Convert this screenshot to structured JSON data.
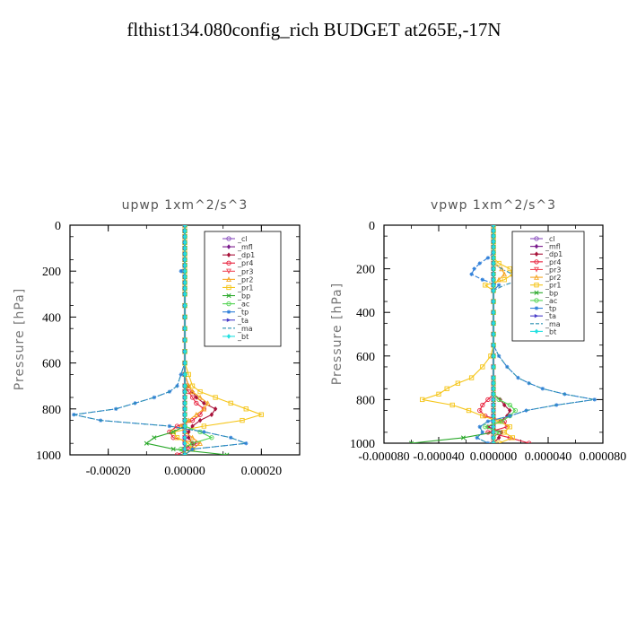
{
  "title": "flthist134.080config_rich  BUDGET at265E,-17N",
  "series_style": {
    "_cl": {
      "color": "#8a4fbf",
      "marker": "o"
    },
    "_mfl": {
      "color": "#7a1a8c",
      "marker": "d"
    },
    "_dp1": {
      "color": "#a8123a",
      "marker": "d"
    },
    "_pr4": {
      "color": "#e8203c",
      "marker": "o"
    },
    "_pr3": {
      "color": "#f04a5a",
      "marker": "v"
    },
    "_pr2": {
      "color": "#f5a623",
      "marker": "^"
    },
    "_pr1": {
      "color": "#f5c518",
      "marker": "s"
    },
    "_bp": {
      "color": "#2aa82a",
      "marker": "x"
    },
    "_ac": {
      "color": "#52d452",
      "marker": "o"
    },
    "_tp": {
      "color": "#2f7fd9",
      "marker": "*"
    },
    "_ta": {
      "color": "#4a3fc9",
      "marker": ">"
    },
    "_ma": {
      "color": "#2a8fb0",
      "marker": "-"
    },
    "_bt": {
      "color": "#22e0e0",
      "marker": "D"
    }
  },
  "chart_data": [
    {
      "type": "line",
      "title": "upwp   1xm^2/s^3",
      "ylabel": "Pressure [hPa]",
      "xlabel": "",
      "xlim": [
        -0.0003,
        0.0003
      ],
      "ylim": [
        1000,
        0
      ],
      "x_ticks": [
        -0.0002,
        0.0,
        0.0002
      ],
      "x_tick_labels": [
        "-0.00020",
        "0.00000",
        "0.00020"
      ],
      "y_ticks": [
        0,
        200,
        400,
        600,
        800,
        1000
      ],
      "y_tick_labels": [
        "0",
        "200",
        "400",
        "600",
        "800",
        "1000"
      ],
      "legend_position": "top-right",
      "legend": [
        "_cl",
        "_mfl",
        "_dp1",
        "_pr4",
        "_pr3",
        "_pr2",
        "_pr1",
        "_bp",
        "_ac",
        "_tp",
        "_ta",
        "_ma",
        "_bt"
      ],
      "pressure": [
        0,
        25,
        50,
        75,
        100,
        125,
        150,
        175,
        200,
        225,
        250,
        275,
        300,
        350,
        400,
        450,
        500,
        550,
        600,
        650,
        700,
        725,
        750,
        775,
        800,
        825,
        850,
        875,
        900,
        925,
        950,
        975,
        1000
      ],
      "series": [
        {
          "name": "_cl",
          "values": [
            0,
            0,
            0,
            0,
            0,
            0,
            0,
            0,
            0,
            0,
            0,
            0,
            0,
            0,
            0,
            0,
            0,
            0,
            0,
            0,
            0,
            0,
            0,
            0,
            0,
            0,
            0,
            0,
            0,
            0,
            0,
            0,
            0
          ]
        },
        {
          "name": "_mfl",
          "values": [
            0,
            0,
            0,
            0,
            0,
            0,
            0,
            0,
            0,
            0,
            0,
            0,
            0,
            0,
            0,
            0,
            0,
            0,
            0,
            0,
            0,
            0,
            0,
            0,
            0,
            0,
            0,
            0,
            0,
            0,
            0,
            0,
            0
          ]
        },
        {
          "name": "_dp1",
          "values": [
            0,
            0,
            0,
            0,
            0,
            0,
            0,
            0,
            0,
            0,
            0,
            0,
            0,
            0,
            0,
            0,
            0,
            0,
            0,
            0,
            1e-05,
            2e-05,
            3e-05,
            5e-05,
            8e-05,
            7e-05,
            4e-05,
            2e-05,
            1e-05,
            1e-05,
            2e-05,
            0,
            0
          ]
        },
        {
          "name": "_pr4",
          "values": [
            0,
            0,
            0,
            0,
            0,
            0,
            0,
            0,
            0,
            0,
            0,
            0,
            0,
            0,
            0,
            0,
            0,
            0,
            0,
            0,
            0,
            1e-05,
            2e-05,
            3e-05,
            5e-05,
            4e-05,
            2e-05,
            -2e-05,
            -4e-05,
            -3e-05,
            3e-05,
            1e-05,
            -2e-05
          ]
        },
        {
          "name": "_pr3",
          "values": [
            0,
            0,
            0,
            0,
            0,
            0,
            0,
            0,
            0,
            0,
            0,
            0,
            0,
            0,
            0,
            0,
            0,
            0,
            0,
            0,
            0,
            0,
            0,
            0,
            0,
            0,
            0,
            0,
            0,
            0,
            0,
            0,
            0
          ]
        },
        {
          "name": "_pr2",
          "values": [
            0,
            0,
            0,
            0,
            0,
            0,
            0,
            0,
            0,
            0,
            0,
            0,
            0,
            0,
            0,
            0,
            0,
            0,
            0,
            0,
            1e-05,
            2e-05,
            4e-05,
            6e-05,
            5e-05,
            3e-05,
            1e-05,
            -1e-05,
            0,
            2e-05,
            4e-05,
            2e-05,
            0
          ]
        },
        {
          "name": "_pr1",
          "values": [
            0,
            0,
            0,
            0,
            0,
            0,
            0,
            0,
            0,
            0,
            0,
            0,
            0,
            0,
            0,
            0,
            0,
            0,
            0,
            1e-05,
            2e-05,
            4e-05,
            8e-05,
            0.00012,
            0.00016,
            0.0002,
            0.00015,
            5e-05,
            -3e-05,
            -2e-05,
            1e-05,
            2e-05,
            0
          ]
        },
        {
          "name": "_bp",
          "values": [
            0,
            0,
            0,
            0,
            0,
            0,
            0,
            0,
            0,
            0,
            0,
            0,
            0,
            0,
            0,
            0,
            0,
            0,
            0,
            0,
            0,
            0,
            0,
            0,
            0,
            0,
            0,
            0,
            -3e-05,
            -8e-05,
            -0.0001,
            -3e-05,
            0.00011
          ]
        },
        {
          "name": "_ac",
          "values": [
            0,
            0,
            0,
            0,
            0,
            0,
            0,
            0,
            0,
            0,
            0,
            0,
            0,
            0,
            0,
            0,
            0,
            0,
            0,
            0,
            0,
            0,
            0,
            0,
            0,
            0,
            0,
            0,
            4e-05,
            7e-05,
            2e-05,
            -1e-05,
            0
          ]
        },
        {
          "name": "_tp",
          "values": [
            0,
            0,
            0,
            0,
            0,
            0,
            0,
            0,
            -1e-05,
            0,
            0,
            0,
            0,
            0,
            0,
            0,
            0,
            0,
            0,
            -1e-05,
            -2e-05,
            -4e-05,
            -8e-05,
            -0.00013,
            -0.00018,
            -0.00029,
            -0.00022,
            -4e-05,
            5e-05,
            0.00012,
            0.00016,
            2e-05,
            0
          ]
        },
        {
          "name": "_ta",
          "values": [
            0,
            0,
            0,
            0,
            0,
            0,
            0,
            0,
            0,
            0,
            0,
            0,
            0,
            0,
            0,
            0,
            0,
            0,
            0,
            0,
            0,
            0,
            0,
            0,
            0,
            0,
            0,
            0,
            0,
            0,
            0,
            0,
            0
          ]
        },
        {
          "name": "_ma",
          "values": [
            0,
            0,
            0,
            0,
            0,
            0,
            0,
            0,
            0,
            0,
            0,
            0,
            0,
            0,
            0,
            0,
            0,
            0,
            0,
            -1e-05,
            -2e-05,
            -4e-05,
            -8e-05,
            -0.00013,
            -0.00018,
            -0.00029,
            -0.00022,
            -4e-05,
            5e-05,
            0.00012,
            0.00016,
            2e-05,
            0
          ]
        },
        {
          "name": "_bt",
          "values": [
            0,
            0,
            0,
            0,
            0,
            0,
            0,
            0,
            0,
            0,
            0,
            0,
            0,
            0,
            0,
            0,
            0,
            0,
            0,
            0,
            0,
            0,
            0,
            0,
            0,
            0,
            0,
            0,
            0,
            0,
            0,
            0,
            0
          ]
        }
      ]
    },
    {
      "type": "line",
      "title": "vpwp   1xm^2/s^3",
      "ylabel": "Pressure [hPa]",
      "xlabel": "",
      "xlim": [
        -8e-05,
        8e-05
      ],
      "ylim": [
        1000,
        0
      ],
      "x_ticks": [
        -8e-05,
        -4e-05,
        0.0,
        4e-05,
        8e-05
      ],
      "x_tick_labels": [
        "-0.000080",
        "-0.000040",
        "0.000000",
        "0.000040",
        "0.000080"
      ],
      "y_ticks": [
        0,
        200,
        400,
        600,
        800,
        1000
      ],
      "y_tick_labels": [
        "0",
        "200",
        "400",
        "600",
        "800",
        "1000"
      ],
      "legend_position": "top-right",
      "legend": [
        "_cl",
        "_mfl",
        "_dp1",
        "_pr4",
        "_pr3",
        "_pr2",
        "_pr1",
        "_bp",
        "_ac",
        "_tp",
        "_ta",
        "_ma",
        "_bt"
      ],
      "pressure": [
        0,
        25,
        50,
        75,
        100,
        125,
        150,
        175,
        200,
        225,
        250,
        275,
        300,
        350,
        400,
        450,
        500,
        550,
        600,
        650,
        700,
        725,
        750,
        775,
        800,
        825,
        850,
        875,
        900,
        925,
        950,
        975,
        1000
      ],
      "series": [
        {
          "name": "_cl",
          "values": [
            0,
            0,
            0,
            0,
            0,
            0,
            0,
            0,
            0,
            0,
            0,
            0,
            0,
            0,
            0,
            0,
            0,
            0,
            0,
            0,
            0,
            0,
            0,
            0,
            0,
            0,
            0,
            0,
            0,
            0,
            0,
            0,
            0
          ]
        },
        {
          "name": "_mfl",
          "values": [
            0,
            0,
            0,
            0,
            0,
            0,
            0,
            0,
            0,
            0,
            0,
            0,
            0,
            0,
            0,
            0,
            0,
            0,
            0,
            0,
            0,
            0,
            0,
            0,
            0,
            0,
            0,
            0,
            0,
            0,
            0,
            0,
            0
          ]
        },
        {
          "name": "_dp1",
          "values": [
            0,
            0,
            0,
            0,
            0,
            0,
            0,
            0,
            0,
            0,
            0,
            0,
            0,
            0,
            0,
            0,
            0,
            0,
            0,
            0,
            0,
            0,
            0,
            0,
            5e-06,
            8e-06,
            1.2e-05,
            1e-05,
            5e-06,
            -4e-06,
            6e-06,
            4e-06,
            0
          ]
        },
        {
          "name": "_pr4",
          "values": [
            0,
            0,
            0,
            0,
            0,
            0,
            0,
            0,
            0,
            0,
            0,
            0,
            0,
            0,
            0,
            0,
            0,
            0,
            0,
            0,
            0,
            0,
            0,
            0,
            -4e-06,
            -8e-06,
            -1e-05,
            -6e-06,
            8e-06,
            1e-05,
            -4e-06,
            1.2e-05,
            2.6e-05
          ]
        },
        {
          "name": "_pr3",
          "values": [
            0,
            0,
            0,
            0,
            0,
            0,
            0,
            0,
            0,
            0,
            0,
            0,
            0,
            0,
            0,
            0,
            0,
            0,
            0,
            0,
            0,
            0,
            0,
            0,
            0,
            0,
            0,
            0,
            0,
            0,
            0,
            0,
            0
          ]
        },
        {
          "name": "_pr2",
          "values": [
            0,
            0,
            0,
            0,
            0,
            0,
            0,
            0,
            6e-06,
            8e-06,
            4e-06,
            0,
            0,
            0,
            0,
            0,
            0,
            0,
            0,
            0,
            0,
            0,
            0,
            0,
            0,
            0,
            0,
            0,
            0,
            0,
            0,
            0,
            0
          ]
        },
        {
          "name": "_pr1",
          "values": [
            0,
            0,
            0,
            0,
            0,
            0,
            0,
            4e-06,
            1.2e-05,
            1.4e-05,
            8e-06,
            -6e-06,
            0,
            0,
            0,
            0,
            0,
            0,
            -2e-06,
            -8e-06,
            -1.6e-05,
            -2.6e-05,
            -3.4e-05,
            -4e-05,
            -5.2e-05,
            -3e-05,
            -1.8e-05,
            -8e-06,
            4e-06,
            1.2e-05,
            8e-06,
            1.4e-05,
            4e-06
          ]
        },
        {
          "name": "_bp",
          "values": [
            0,
            0,
            0,
            0,
            0,
            0,
            0,
            0,
            0,
            0,
            0,
            0,
            0,
            0,
            0,
            0,
            0,
            0,
            0,
            0,
            0,
            0,
            0,
            0,
            0,
            0,
            0,
            0,
            0,
            0,
            0,
            -2.2e-05,
            -6e-05
          ]
        },
        {
          "name": "_ac",
          "values": [
            0,
            0,
            0,
            0,
            0,
            0,
            0,
            0,
            0,
            0,
            0,
            0,
            0,
            0,
            0,
            0,
            0,
            0,
            0,
            0,
            0,
            0,
            0,
            0,
            4e-06,
            1.2e-05,
            1.6e-05,
            1.2e-05,
            6e-06,
            -6e-06,
            4e-06,
            0,
            0
          ]
        },
        {
          "name": "_tp",
          "values": [
            0,
            0,
            0,
            0,
            0,
            0,
            -4e-06,
            -1e-05,
            -1.4e-05,
            -1.6e-05,
            -8e-06,
            4e-06,
            0,
            0,
            0,
            0,
            0,
            0,
            4e-06,
            1e-05,
            1.8e-05,
            2.6e-05,
            3.6e-05,
            5.2e-05,
            7.4e-05,
            4.6e-05,
            2.4e-05,
            1.2e-05,
            -4e-06,
            -1e-05,
            -8e-06,
            -1.2e-05,
            -4e-06
          ]
        },
        {
          "name": "_ta",
          "values": [
            0,
            0,
            0,
            0,
            0,
            0,
            0,
            0,
            0,
            0,
            0,
            0,
            0,
            0,
            0,
            0,
            0,
            0,
            0,
            0,
            0,
            0,
            0,
            0,
            0,
            0,
            0,
            0,
            0,
            0,
            0,
            0,
            0
          ]
        },
        {
          "name": "_ma",
          "values": [
            0,
            0,
            0,
            0,
            0,
            0,
            0,
            0,
            6e-06,
            1.4e-05,
            2e-05,
            8e-06,
            0,
            0,
            0,
            0,
            0,
            0,
            4e-06,
            1e-05,
            1.8e-05,
            2.6e-05,
            3.6e-05,
            5.2e-05,
            7.4e-05,
            4.6e-05,
            2.4e-05,
            1.2e-05,
            -4e-06,
            -1e-05,
            -8e-06,
            -1.2e-05,
            -4e-06
          ]
        },
        {
          "name": "_bt",
          "values": [
            0,
            0,
            0,
            0,
            0,
            0,
            0,
            0,
            0,
            0,
            0,
            0,
            0,
            0,
            0,
            0,
            0,
            0,
            0,
            0,
            0,
            0,
            0,
            0,
            0,
            0,
            0,
            0,
            0,
            0,
            0,
            0,
            0
          ]
        }
      ]
    }
  ]
}
